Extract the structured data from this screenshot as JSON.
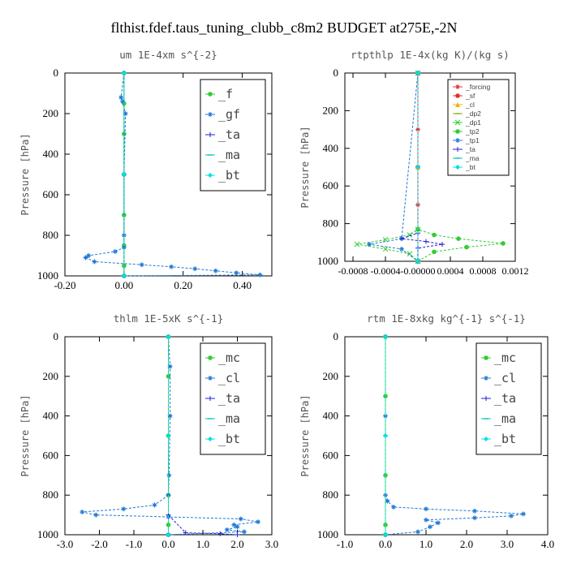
{
  "title": "flthist.fdef.taus_tuning_clubb_c8m2  BUDGET at275E,-2N",
  "colors": {
    "green": "#33cc33",
    "lightgreen": "#88e088",
    "blue": "#1f77d4",
    "navy": "#1f1fd4",
    "red": "#e03030",
    "orange": "#f0b400",
    "olive": "#88aa00",
    "cyan": "#00e0e0",
    "teal": "#00bfbf",
    "axis": "#000000"
  },
  "chart_data": [
    {
      "type": "line",
      "title": "um   1E-4xm s^{-2}",
      "ylabel": "Pressure [hPa]",
      "xlabel": "",
      "xlim": [
        -0.2,
        0.5
      ],
      "ylim": [
        1000,
        0
      ],
      "y_inverted": true,
      "xticks": [
        "-0.20",
        "0.00",
        "0.20",
        "0.40"
      ],
      "xtick_values": [
        -0.2,
        0.0,
        0.2,
        0.4
      ],
      "yticks": [
        0,
        200,
        400,
        600,
        800,
        1000
      ],
      "legend": {
        "position": "top-right",
        "size": "big"
      },
      "series": [
        {
          "name": "_f",
          "color": "#33cc33",
          "marker": "o",
          "x": [
            0.0,
            0.0,
            0.0,
            0.0,
            0.0,
            0.0,
            0.0,
            0.0
          ],
          "y": [
            0,
            150,
            300,
            500,
            700,
            850,
            950,
            1000
          ]
        },
        {
          "name": "_gf",
          "color": "#1f77d4",
          "marker": "*",
          "x": [
            0.0,
            -0.01,
            -0.005,
            0.005,
            0.0,
            0.0,
            0.0,
            -0.03,
            -0.12,
            -0.13,
            -0.1,
            0.06,
            0.16,
            0.24,
            0.31,
            0.38,
            0.46,
            0.0
          ],
          "y": [
            0,
            120,
            140,
            200,
            500,
            800,
            860,
            880,
            900,
            910,
            930,
            945,
            955,
            965,
            975,
            985,
            995,
            1000
          ]
        },
        {
          "name": "_ta",
          "color": "#1f1fd4",
          "marker": "+",
          "x": [
            0.0,
            0.0,
            0.0
          ],
          "y": [
            0,
            500,
            1000
          ]
        },
        {
          "name": "_ma",
          "color": "#00bfbf",
          "marker": "-",
          "x": [
            0.0,
            0.0,
            0.0
          ],
          "y": [
            0,
            500,
            1000
          ]
        },
        {
          "name": "_bt",
          "color": "#00e0e0",
          "marker": "diamond",
          "x": [
            0.0,
            0.0,
            0.0
          ],
          "y": [
            0,
            500,
            1000
          ]
        }
      ]
    },
    {
      "type": "line",
      "title": "rtpthlp  1E-4x(kg K)/(kg s)",
      "ylabel": "Pressure [hPa]",
      "xlabel": "",
      "xlim": [
        -0.0009,
        0.0012
      ],
      "ylim": [
        1000,
        0
      ],
      "y_inverted": true,
      "xticks": [
        "-0.0008",
        "-0.0004",
        "-0.00000",
        "0.0004",
        "0.0008",
        "0.0012"
      ],
      "xtick_values": [
        -0.0008,
        -0.0004,
        0.0,
        0.0004,
        0.0008,
        0.0012
      ],
      "yticks": [
        0,
        200,
        400,
        600,
        800,
        1000
      ],
      "legend": {
        "position": "top-right",
        "size": "small"
      },
      "series": [
        {
          "name": "_forcing",
          "color": "#e03030",
          "marker": "*",
          "x": [
            0.0,
            0.0,
            0.0,
            0.0
          ],
          "y": [
            0,
            300,
            700,
            1000
          ]
        },
        {
          "name": "_sf",
          "color": "#e03030",
          "marker": "o",
          "x": [
            0.0,
            0.0,
            0.0
          ],
          "y": [
            0,
            500,
            1000
          ]
        },
        {
          "name": "_cl",
          "color": "#f0b400",
          "marker": "triangle",
          "x": [
            0.0,
            0.0,
            0.0
          ],
          "y": [
            0,
            500,
            1000
          ]
        },
        {
          "name": "_dp2",
          "color": "#88aa00",
          "marker": "-",
          "x": [
            0.0,
            0.0,
            0.0
          ],
          "y": [
            0,
            500,
            1000
          ]
        },
        {
          "name": "_dp1",
          "color": "#33cc33",
          "marker": "x",
          "x": [
            0.0,
            0.0,
            -0.0001,
            -0.0004,
            -0.00075,
            -0.0004,
            -0.0001,
            0.0
          ],
          "y": [
            0,
            830,
            860,
            885,
            910,
            935,
            960,
            1000
          ]
        },
        {
          "name": "_tp2",
          "color": "#33cc33",
          "marker": "o",
          "x": [
            0.0,
            0.0,
            0.0002,
            0.0005,
            0.00105,
            0.0006,
            0.0002,
            0.0
          ],
          "y": [
            0,
            830,
            860,
            880,
            905,
            925,
            950,
            1000
          ]
        },
        {
          "name": "_tp1",
          "color": "#1f77d4",
          "marker": "*",
          "x": [
            0.0,
            -0.0002,
            -0.0006,
            -0.0002,
            0.0
          ],
          "y": [
            0,
            880,
            910,
            935,
            1000
          ]
        },
        {
          "name": "_ta",
          "color": "#1f1fd4",
          "marker": "+",
          "x": [
            0.0,
            0.0,
            -0.0002,
            0.0001,
            0.0003,
            0.0,
            0.0
          ],
          "y": [
            0,
            850,
            880,
            895,
            910,
            930,
            1000
          ]
        },
        {
          "name": "_ma",
          "color": "#00bfbf",
          "marker": "-",
          "x": [
            0.0,
            0.0,
            0.0
          ],
          "y": [
            0,
            500,
            1000
          ]
        },
        {
          "name": "_bt",
          "color": "#00e0e0",
          "marker": "diamond",
          "x": [
            0.0,
            0.0,
            0.0
          ],
          "y": [
            0,
            500,
            1000
          ]
        }
      ]
    },
    {
      "type": "line",
      "title": "thlm   1E-5xK s^{-1}",
      "ylabel": "Pressure [hPa]",
      "xlabel": "",
      "xlim": [
        -3.0,
        3.0
      ],
      "ylim": [
        1000,
        0
      ],
      "y_inverted": true,
      "xticks": [
        "-3.0",
        "-2.0",
        "-1.0",
        "0.0",
        "1.0",
        "2.0",
        "3.0"
      ],
      "xtick_values": [
        -3.0,
        -2.0,
        -1.0,
        0.0,
        1.0,
        2.0,
        3.0
      ],
      "yticks": [
        0,
        200,
        400,
        600,
        800,
        1000
      ],
      "legend": {
        "position": "top-right",
        "size": "big"
      },
      "series": [
        {
          "name": "_mc",
          "color": "#33cc33",
          "marker": "o",
          "x": [
            0.0,
            0.0,
            0.0,
            0.0,
            0.0,
            0.0
          ],
          "y": [
            0,
            200,
            500,
            800,
            950,
            1000
          ]
        },
        {
          "name": "_cl",
          "color": "#1f77d4",
          "marker": "*",
          "x": [
            0.0,
            0.05,
            0.05,
            0.02,
            0.0,
            -0.4,
            -1.3,
            -2.5,
            -2.1,
            0.0,
            2.1,
            2.6,
            1.9,
            2.0,
            1.7,
            2.2,
            0.0
          ],
          "y": [
            0,
            150,
            400,
            700,
            800,
            850,
            870,
            885,
            900,
            910,
            920,
            935,
            950,
            960,
            975,
            985,
            1000
          ]
        },
        {
          "name": "_ta",
          "color": "#1f1fd4",
          "marker": "+",
          "x": [
            0.0,
            0.0,
            0.5,
            1.5,
            2.0
          ],
          "y": [
            0,
            900,
            990,
            995,
            1000
          ]
        },
        {
          "name": "_ma",
          "color": "#00bfbf",
          "marker": "-",
          "x": [
            0.0,
            0.0,
            0.0
          ],
          "y": [
            0,
            500,
            1000
          ]
        },
        {
          "name": "_bt",
          "color": "#00e0e0",
          "marker": "diamond",
          "x": [
            0.0,
            0.0,
            0.0
          ],
          "y": [
            0,
            500,
            1000
          ]
        }
      ]
    },
    {
      "type": "line",
      "title": "rtm   1E-8xkg kg^{-1} s^{-1}",
      "ylabel": "Pressure [hPa]",
      "xlabel": "",
      "xlim": [
        -1.0,
        4.0
      ],
      "ylim": [
        1000,
        0
      ],
      "y_inverted": true,
      "xticks": [
        "-1.0",
        "0.0",
        "1.0",
        "2.0",
        "3.0",
        "4.0"
      ],
      "xtick_values": [
        -1.0,
        0.0,
        1.0,
        2.0,
        3.0,
        4.0
      ],
      "yticks": [
        0,
        200,
        400,
        600,
        800,
        1000
      ],
      "legend": {
        "position": "top-right",
        "size": "big"
      },
      "series": [
        {
          "name": "_mc",
          "color": "#33cc33",
          "marker": "o",
          "x": [
            0.0,
            0.0,
            0.0,
            0.0,
            0.0
          ],
          "y": [
            0,
            300,
            700,
            950,
            1000
          ]
        },
        {
          "name": "_cl",
          "color": "#1f77d4",
          "marker": "*",
          "x": [
            0.0,
            0.0,
            0.0,
            0.05,
            0.2,
            1.0,
            2.2,
            3.4,
            3.1,
            2.2,
            1.0,
            1.3,
            1.1,
            0.8,
            0.0
          ],
          "y": [
            0,
            400,
            800,
            830,
            860,
            870,
            880,
            895,
            905,
            915,
            925,
            940,
            960,
            985,
            1000
          ]
        },
        {
          "name": "_ta",
          "color": "#1f1fd4",
          "marker": "+",
          "x": [
            0.0,
            0.0,
            0.0
          ],
          "y": [
            0,
            500,
            1000
          ]
        },
        {
          "name": "_ma",
          "color": "#00bfbf",
          "marker": "-",
          "x": [
            0.0,
            0.0,
            0.0
          ],
          "y": [
            0,
            500,
            1000
          ]
        },
        {
          "name": "_bt",
          "color": "#00e0e0",
          "marker": "diamond",
          "x": [
            0.0,
            0.0,
            0.0
          ],
          "y": [
            0,
            500,
            1000
          ]
        }
      ]
    }
  ]
}
